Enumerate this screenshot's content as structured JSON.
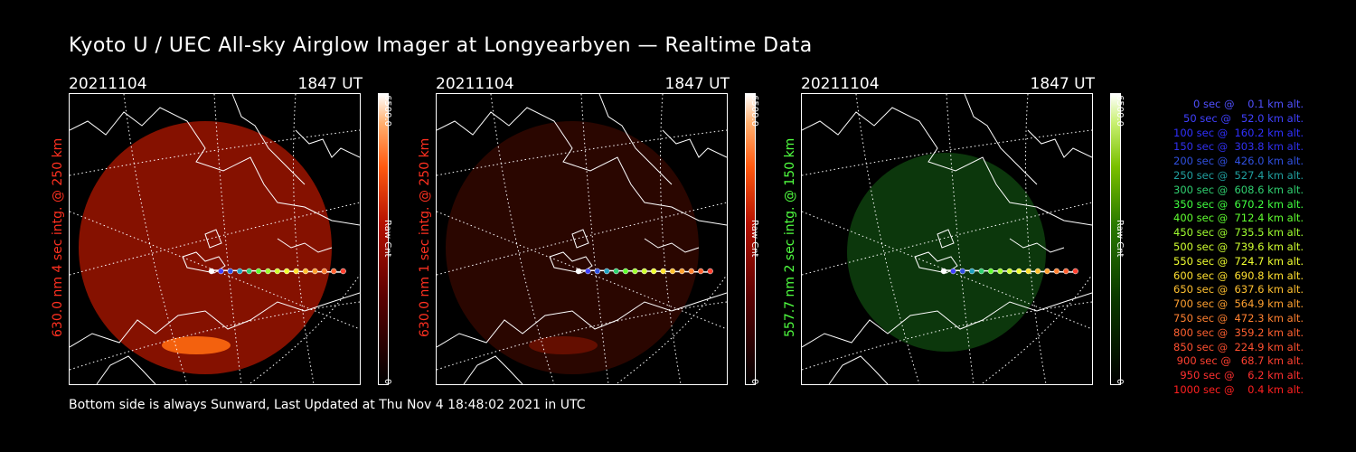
{
  "title": "Kyoto U / UEC All-sky Airglow Imager at Longyearbyen — Realtime Data",
  "footer": "Bottom side is always Sunward, Last Updated at Thu Nov  4 18:48:02 2021 in UTC",
  "panels": [
    {
      "date": "20211104",
      "time": "1847 UT",
      "label": "630.0 nm  4 sec intg. @ 250 km",
      "label_color": "#ff3020",
      "cbar_max": "6500.0",
      "cbar_min": "0",
      "cbar_unit": "Raw Cnt",
      "image_color": "#8c1200",
      "cbar_gradient": "linear-gradient(to top,#000 0%,#5a0000 30%,#b31000 55%,#ff5a10 75%,#ffb070 90%,#fff 100%)"
    },
    {
      "date": "20211104",
      "time": "1847 UT",
      "label": "630.0 nm  1 sec intg. @ 250 km",
      "label_color": "#ff3020",
      "cbar_max": "6500.0",
      "cbar_min": "0",
      "cbar_unit": "Raw Cnt",
      "image_color": "#2c0600",
      "cbar_gradient": "linear-gradient(to top,#000 0%,#5a0000 30%,#b31000 55%,#ff5a10 75%,#ffb070 90%,#fff 100%)"
    },
    {
      "date": "20211104",
      "time": "1847 UT",
      "label": "557.7 nm  2 sec intg. @ 150 km",
      "label_color": "#50ff40",
      "cbar_max": "6500.0",
      "cbar_min": "0",
      "cbar_unit": "Raw Cnt",
      "image_color": "#0d3a0d",
      "cbar_gradient": "linear-gradient(to top,#000 0%,#0a3a00 30%,#2a7a00 55%,#7ac000 75%,#c8f070 90%,#fff 100%)"
    }
  ],
  "legend": [
    {
      "text": "   0 sec @    0.1 km alt.",
      "color": "#5050ff"
    },
    {
      "text": "  50 sec @   52.0 km alt.",
      "color": "#4040ff"
    },
    {
      "text": " 100 sec @  160.2 km alt.",
      "color": "#3030ff"
    },
    {
      "text": " 150 sec @  303.8 km alt.",
      "color": "#3030f0"
    },
    {
      "text": " 200 sec @  426.0 km alt.",
      "color": "#3050e0"
    },
    {
      "text": " 250 sec @  527.4 km alt.",
      "color": "#20a0a0"
    },
    {
      "text": " 300 sec @  608.6 km alt.",
      "color": "#30d070"
    },
    {
      "text": " 350 sec @  670.2 km alt.",
      "color": "#40ff40"
    },
    {
      "text": " 400 sec @  712.4 km alt.",
      "color": "#60ff30"
    },
    {
      "text": " 450 sec @  735.5 km alt.",
      "color": "#a0ff30"
    },
    {
      "text": " 500 sec @  739.6 km alt.",
      "color": "#d0ff30"
    },
    {
      "text": " 550 sec @  724.7 km alt.",
      "color": "#f0ff30"
    },
    {
      "text": " 600 sec @  690.8 km alt.",
      "color": "#ffe030"
    },
    {
      "text": " 650 sec @  637.6 km alt.",
      "color": "#ffc030"
    },
    {
      "text": " 700 sec @  564.9 km alt.",
      "color": "#ffa030"
    },
    {
      "text": " 750 sec @  472.3 km alt.",
      "color": "#ff8030"
    },
    {
      "text": " 800 sec @  359.2 km alt.",
      "color": "#ff6030"
    },
    {
      "text": " 850 sec @  224.9 km alt.",
      "color": "#ff5030"
    },
    {
      "text": " 900 sec @   68.7 km alt.",
      "color": "#ff4030"
    },
    {
      "text": " 950 sec @    6.2 km alt.",
      "color": "#ff3030"
    },
    {
      "text": "1000 sec @    0.4 km alt.",
      "color": "#ff2020"
    }
  ],
  "track_colors": [
    "#ffffff",
    "#4040ff",
    "#3050e0",
    "#20a0c0",
    "#30d070",
    "#60ff30",
    "#a0ff30",
    "#d0ff30",
    "#f0ff30",
    "#ffe030",
    "#ffc030",
    "#ffa030",
    "#ff8030",
    "#ff6030",
    "#ff4030"
  ]
}
